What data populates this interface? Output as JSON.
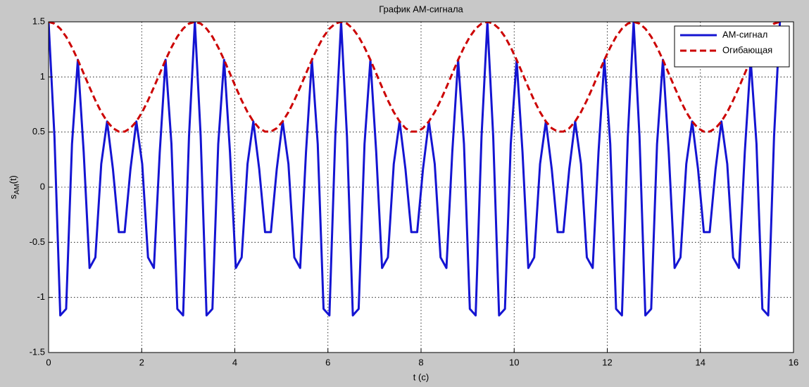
{
  "chart_data": {
    "type": "line",
    "title": "График АМ-сигнала",
    "xlabel": "t (c)",
    "ylabel": [
      "s",
      "AM",
      "(t)"
    ],
    "xlim": [
      0,
      16
    ],
    "ylim": [
      -1.5,
      1.5
    ],
    "xticks": [
      0,
      2,
      4,
      6,
      8,
      10,
      12,
      14,
      16
    ],
    "yticks": [
      -1.5,
      -1,
      -0.5,
      0,
      0.5,
      1,
      1.5
    ],
    "grid": true,
    "legend": "upper right",
    "x": [
      0,
      0.126,
      0.251,
      0.377,
      0.503,
      0.628,
      0.754,
      0.88,
      1.005,
      1.131,
      1.257,
      1.382,
      1.508,
      1.634,
      1.759,
      1.885,
      2.011,
      2.136,
      2.262,
      2.388,
      2.513,
      2.639,
      2.765,
      2.89,
      3.016,
      3.142,
      3.267,
      3.393,
      3.519,
      3.644,
      3.77,
      3.896,
      4.021,
      4.147,
      4.273,
      4.398,
      4.524,
      4.65,
      4.775,
      4.901,
      5.027,
      5.152,
      5.278,
      5.404,
      5.529,
      5.655,
      5.781,
      5.906,
      6.032,
      6.158,
      6.283,
      6.409,
      6.535,
      6.66,
      6.786,
      6.912,
      7.037,
      7.163,
      7.288,
      7.414,
      7.54,
      7.665,
      7.791,
      7.917,
      8.042,
      8.168,
      8.294,
      8.419,
      8.545,
      8.671,
      8.796,
      8.922,
      9.048,
      9.173,
      9.299,
      9.425,
      9.55,
      9.676,
      9.802,
      9.927,
      10.053,
      10.179,
      10.304,
      10.43,
      10.556,
      10.681,
      10.807,
      10.933,
      11.058,
      11.184,
      11.31,
      11.435,
      11.561,
      11.687,
      11.812,
      11.938,
      12.064,
      12.189,
      12.315,
      12.441,
      12.566,
      12.692,
      12.818,
      12.943,
      13.069,
      13.195,
      13.32,
      13.446,
      13.572,
      13.697,
      13.823,
      13.949,
      14.074,
      14.2,
      14.326,
      14.451,
      14.577,
      14.703,
      14.828,
      14.954,
      15.08,
      15.205,
      15.331,
      15.457,
      15.582,
      15.708
    ],
    "series": [
      {
        "name": "АМ-сигнал",
        "color": "#1414d2",
        "linestyle": "solid",
        "values": [
          1.5,
          0.459,
          -1.163,
          -1.104,
          0.392,
          1.155,
          0.319,
          -0.733,
          -0.637,
          0.21,
          0.596,
          0.165,
          -0.408,
          -0.408,
          0.165,
          0.596,
          0.21,
          -0.637,
          -0.733,
          0.319,
          1.155,
          0.392,
          -1.104,
          -1.163,
          0.459,
          1.5,
          0.459,
          -1.163,
          -1.104,
          0.392,
          1.155,
          0.319,
          -0.733,
          -0.637,
          0.21,
          0.596,
          0.165,
          -0.408,
          -0.408,
          0.165,
          0.596,
          0.21,
          -0.637,
          -0.733,
          0.319,
          1.155,
          0.392,
          -1.104,
          -1.163,
          0.459,
          1.5,
          0.459,
          -1.163,
          -1.104,
          0.392,
          1.155,
          0.319,
          -0.733,
          -0.637,
          0.21,
          0.596,
          0.165,
          -0.408,
          -0.408,
          0.165,
          0.596,
          0.21,
          -0.637,
          -0.733,
          0.319,
          1.155,
          0.392,
          -1.104,
          -1.163,
          0.459,
          1.5,
          0.459,
          -1.163,
          -1.104,
          0.392,
          1.155,
          0.319,
          -0.733,
          -0.637,
          0.21,
          0.596,
          0.165,
          -0.408,
          -0.408,
          0.165,
          0.596,
          0.21,
          -0.637,
          -0.733,
          0.319,
          1.155,
          0.392,
          -1.104,
          -1.163,
          0.459,
          1.5,
          0.459,
          -1.163,
          -1.104,
          0.392,
          1.155,
          0.319,
          -0.733,
          -0.637,
          0.21,
          0.596,
          0.165,
          -0.408,
          -0.408,
          0.165,
          0.596,
          0.21,
          -0.637,
          -0.733,
          0.319,
          1.155,
          0.392,
          -1.104,
          -1.163,
          0.459,
          1.5
        ]
      },
      {
        "name": "Огибающая",
        "color": "#cc0000",
        "linestyle": "dashed",
        "values": [
          1.5,
          1.484,
          1.438,
          1.365,
          1.268,
          1.155,
          1.031,
          0.906,
          0.787,
          0.681,
          0.596,
          0.535,
          0.504,
          0.504,
          0.535,
          0.596,
          0.681,
          0.787,
          0.906,
          1.031,
          1.155,
          1.268,
          1.365,
          1.438,
          1.484,
          1.5,
          1.484,
          1.438,
          1.365,
          1.268,
          1.155,
          1.031,
          0.906,
          0.787,
          0.681,
          0.596,
          0.535,
          0.504,
          0.504,
          0.535,
          0.596,
          0.681,
          0.787,
          0.906,
          1.031,
          1.155,
          1.268,
          1.365,
          1.438,
          1.484,
          1.5,
          1.484,
          1.438,
          1.365,
          1.268,
          1.155,
          1.031,
          0.906,
          0.787,
          0.681,
          0.596,
          0.535,
          0.504,
          0.504,
          0.535,
          0.596,
          0.681,
          0.787,
          0.906,
          1.031,
          1.155,
          1.268,
          1.365,
          1.438,
          1.484,
          1.5,
          1.484,
          1.438,
          1.365,
          1.268,
          1.155,
          1.031,
          0.906,
          0.787,
          0.681,
          0.596,
          0.535,
          0.504,
          0.504,
          0.535,
          0.596,
          0.681,
          0.787,
          0.906,
          1.031,
          1.155,
          1.268,
          1.365,
          1.438,
          1.484,
          1.5,
          1.484,
          1.438,
          1.365,
          1.268,
          1.155,
          1.031,
          0.906,
          0.787,
          0.681,
          0.596,
          0.535,
          0.504,
          0.504,
          0.535,
          0.596,
          0.681,
          0.787,
          0.906,
          1.031,
          1.155,
          1.268,
          1.365,
          1.438,
          1.484,
          1.5
        ]
      }
    ]
  }
}
